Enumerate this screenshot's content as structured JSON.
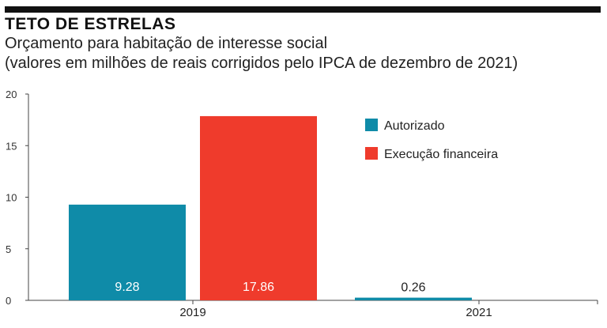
{
  "title": "TETO DE ESTRELAS",
  "subtitle_line1": "Orçamento para habitação de interesse social",
  "subtitle_line2": "(valores em milhões de reais corrigidos pelo IPCA de dezembro de 2021)",
  "colors": {
    "autorizado": "#0f8ba8",
    "execucao": "#ef3b2c",
    "axis": "#444444"
  },
  "chart_data": {
    "type": "bar",
    "categories": [
      "2019",
      "2021"
    ],
    "series": [
      {
        "name": "Autorizado",
        "values": [
          9.28,
          0.26
        ],
        "labels": [
          "9.28",
          "0.26"
        ]
      },
      {
        "name": "Execução financeira",
        "values": [
          17.86,
          null
        ],
        "labels": [
          "17.86",
          ""
        ]
      }
    ],
    "ylim": [
      0,
      20
    ],
    "yticks": [
      0,
      5,
      10,
      15,
      20
    ],
    "grid": false,
    "legend_position": "top-right"
  }
}
